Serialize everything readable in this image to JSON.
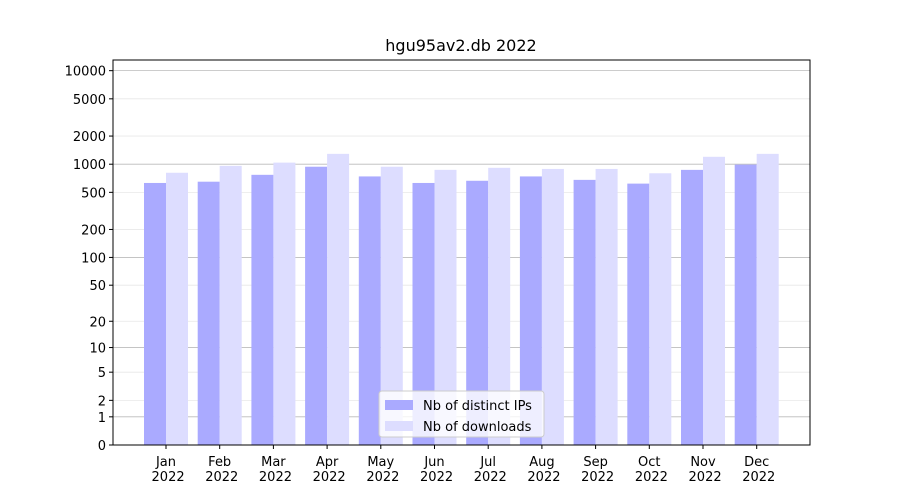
{
  "chart_data": {
    "type": "bar",
    "title": "hgu95av2.db 2022",
    "categories": [
      "Jan\n2022",
      "Feb\n2022",
      "Mar\n2022",
      "Apr\n2022",
      "May\n2022",
      "Jun\n2022",
      "Jul\n2022",
      "Aug\n2022",
      "Sep\n2022",
      "Oct\n2022",
      "Nov\n2022",
      "Dec\n2022"
    ],
    "series": [
      {
        "name": "Nb of distinct IPs",
        "color": "#aaaaff",
        "values": [
          630,
          650,
          770,
          940,
          740,
          630,
          665,
          740,
          680,
          620,
          870,
          990
        ]
      },
      {
        "name": "Nb of downloads",
        "color": "#ddddff",
        "values": [
          810,
          960,
          1040,
          1290,
          940,
          870,
          915,
          890,
          890,
          800,
          1200,
          1290
        ]
      }
    ],
    "yscale": "log1p",
    "ylim": [
      0,
      13000
    ],
    "yticks": [
      0,
      1,
      2,
      5,
      10,
      20,
      50,
      100,
      200,
      500,
      1000,
      2000,
      5000,
      10000
    ],
    "grid": true,
    "legend": "lower center"
  }
}
